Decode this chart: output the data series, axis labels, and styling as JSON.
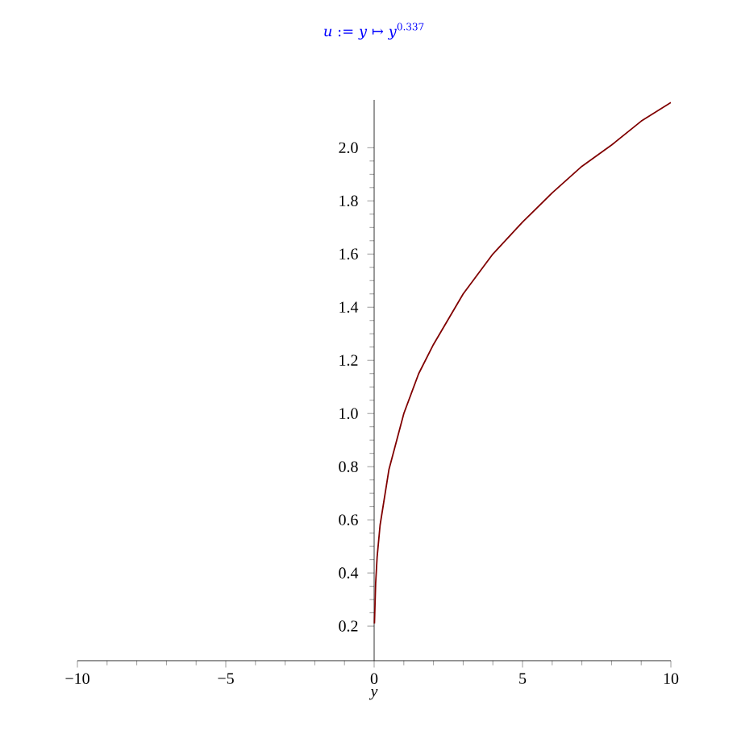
{
  "chart_data": {
    "type": "line",
    "title": "*u* := *y* ↦ *y*$^{0.337}$",
    "xlabel": "*y*",
    "x": [
      0.01,
      0.05,
      0.1,
      0.2,
      0.5,
      1,
      1.5,
      2,
      3,
      4,
      5,
      6,
      7,
      8,
      9,
      10
    ],
    "series": [
      {
        "color": "#800000",
        "values": [
          0.21,
          0.36,
          0.46,
          0.58,
          0.79,
          1.0,
          1.15,
          1.26,
          1.45,
          1.6,
          1.72,
          1.83,
          1.93,
          2.01,
          2.1,
          2.17
        ]
      }
    ],
    "xlim": [
      -10,
      10
    ],
    "ylim": [
      0.07,
      2.18
    ],
    "xticks": [
      {
        "value": -10,
        "label": "−10"
      },
      {
        "value": -5,
        "label": "−5"
      },
      0,
      5,
      10
    ],
    "yticks": [
      0.2,
      0.4,
      0.6,
      0.8,
      {
        "value": 1.0,
        "label": "1.0"
      },
      1.2,
      1.4,
      1.6,
      1.8,
      {
        "value": 2.0,
        "label": "2.0"
      }
    ],
    "legend": false,
    "grid": false,
    "marker": "none",
    "line_style": "solid"
  }
}
